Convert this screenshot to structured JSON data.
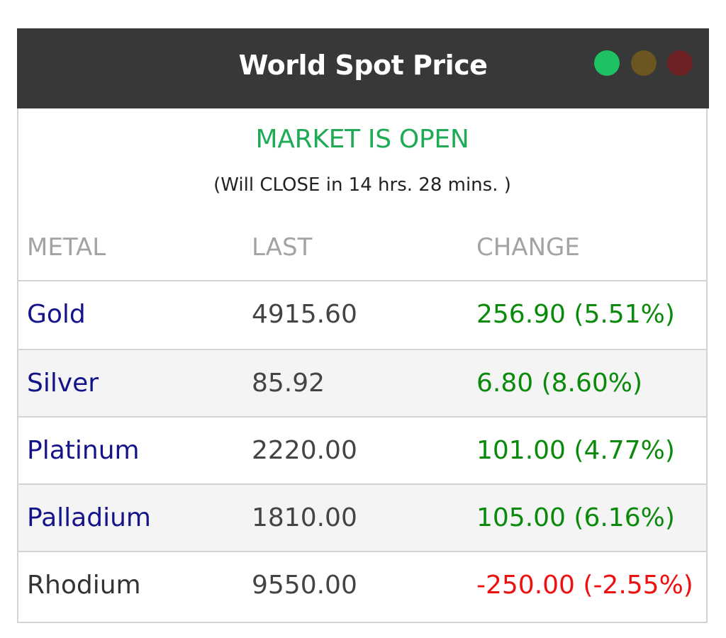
{
  "widget": {
    "title": "World Spot Price",
    "status": "MARKET IS OPEN",
    "countdown": "(Will CLOSE in 14 hrs. 28 mins. )",
    "indicator_colors": [
      "#1ec262",
      "#6b5520",
      "#6e2226"
    ]
  },
  "table": {
    "headers": [
      "METAL",
      "LAST",
      "CHANGE"
    ],
    "rows": [
      {
        "metal": "Gold",
        "last": "4915.60",
        "change": "256.90 (5.51%)",
        "direction": "up",
        "link": true
      },
      {
        "metal": "Silver",
        "last": "85.92",
        "change": "6.80 (8.60%)",
        "direction": "up",
        "link": true
      },
      {
        "metal": "Platinum",
        "last": "2220.00",
        "change": "101.00 (4.77%)",
        "direction": "up",
        "link": true
      },
      {
        "metal": "Palladium",
        "last": "1810.00",
        "change": "105.00 (6.16%)",
        "direction": "up",
        "link": true
      },
      {
        "metal": "Rhodium",
        "last": "9550.00",
        "change": "-250.00 (-2.55%)",
        "direction": "down",
        "link": false
      }
    ]
  },
  "colors": {
    "titlebar": "#383838",
    "open_status": "#1faa55",
    "metal_link": "#14148a",
    "change_up": "#0a8a0a",
    "change_down": "#ee1111"
  }
}
